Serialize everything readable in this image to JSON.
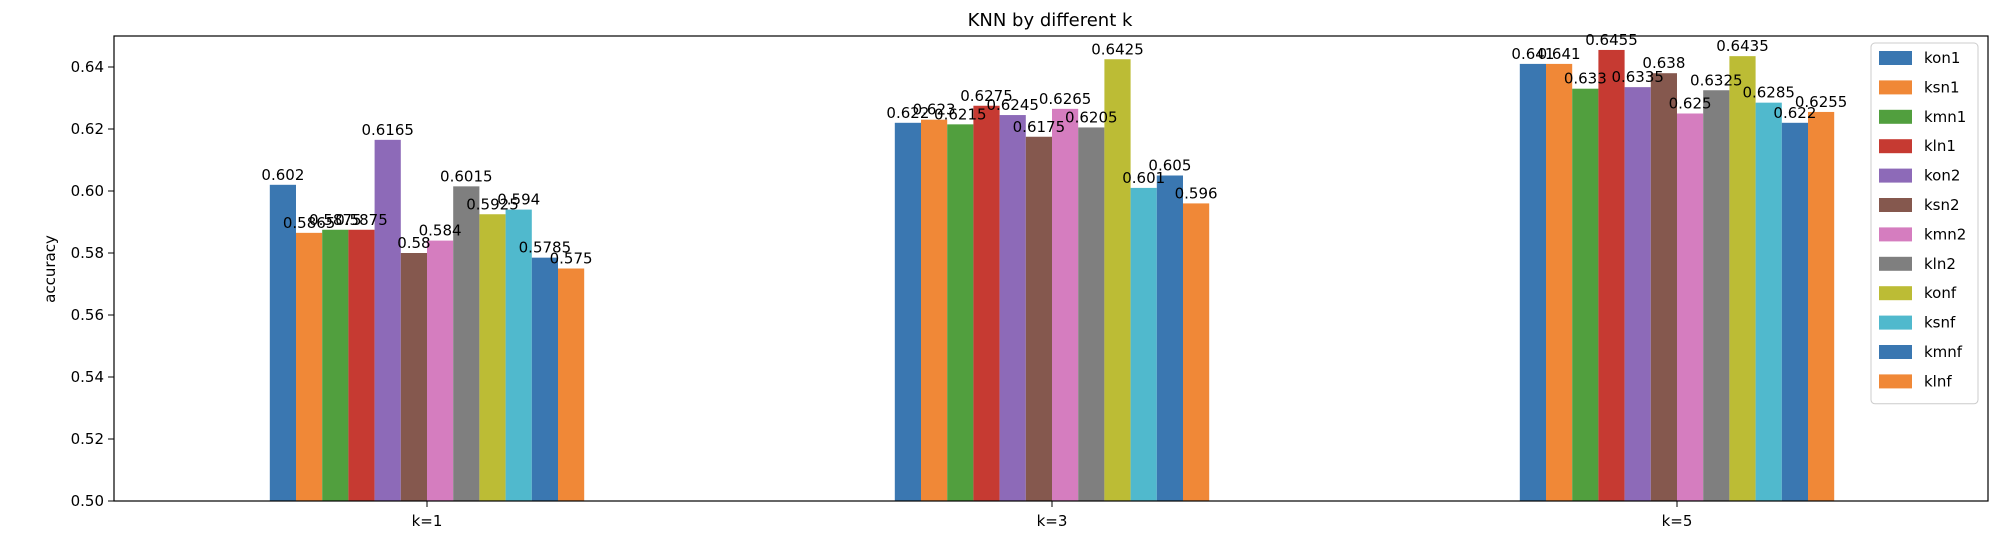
{
  "chart_data": {
    "type": "bar",
    "title": "KNN by different k",
    "xlabel": "",
    "ylabel": "accuracy",
    "ylim": [
      0.5,
      0.65
    ],
    "yticks": [
      "0.50",
      "0.52",
      "0.54",
      "0.56",
      "0.58",
      "0.60",
      "0.62",
      "0.64"
    ],
    "categories": [
      "k=1",
      "k=3",
      "k=5"
    ],
    "legend_position": "top-right",
    "grid": false,
    "series": [
      {
        "name": "kon1",
        "color": "#3a77b1",
        "values": [
          0.602,
          0.622,
          0.641
        ],
        "labels": [
          "0.602",
          "0.622",
          "0.641"
        ]
      },
      {
        "name": "ksn1",
        "color": "#f08837",
        "values": [
          0.5865,
          0.623,
          0.641
        ],
        "labels": [
          "0.5865",
          "0.623",
          "0.641"
        ]
      },
      {
        "name": "kmn1",
        "color": "#519f3e",
        "values": [
          0.5875,
          0.6215,
          0.633
        ],
        "labels": [
          "0.5875",
          "0.6215",
          "0.633"
        ]
      },
      {
        "name": "kln1",
        "color": "#c63a32",
        "values": [
          0.5875,
          0.6275,
          0.6455
        ],
        "labels": [
          "0.5875",
          "0.6275",
          "0.6455"
        ]
      },
      {
        "name": "kon2",
        "color": "#8d6ab8",
        "values": [
          0.6165,
          0.6245,
          0.6335
        ],
        "labels": [
          "0.6165",
          "0.6245",
          "0.6335"
        ]
      },
      {
        "name": "ksn2",
        "color": "#85584e",
        "values": [
          0.58,
          0.6175,
          0.638
        ],
        "labels": [
          "0.58",
          "0.6175",
          "0.638"
        ]
      },
      {
        "name": "kmn2",
        "color": "#d57dbf",
        "values": [
          0.584,
          0.6265,
          0.625
        ],
        "labels": [
          "0.584",
          "0.6265",
          "0.625"
        ]
      },
      {
        "name": "kln2",
        "color": "#7f7f7f",
        "values": [
          0.6015,
          0.6205,
          0.6325
        ],
        "labels": [
          "0.6015",
          "0.6205",
          "0.6325"
        ]
      },
      {
        "name": "konf",
        "color": "#bcbc35",
        "values": [
          0.5925,
          0.6425,
          0.6435
        ],
        "labels": [
          "0.5925",
          "0.6425",
          "0.6435"
        ]
      },
      {
        "name": "ksnf",
        "color": "#50b9cd",
        "values": [
          0.594,
          0.601,
          0.6285
        ],
        "labels": [
          "0.594",
          "0.601",
          "0.6285"
        ]
      },
      {
        "name": "kmnf",
        "color": "#3a77b1",
        "values": [
          0.5785,
          0.605,
          0.622
        ],
        "labels": [
          "0.5785",
          "0.605",
          "0.622"
        ]
      },
      {
        "name": "klnf",
        "color": "#f08837",
        "values": [
          0.575,
          0.596,
          0.6255
        ],
        "labels": [
          "0.575",
          "0.596",
          "0.6255"
        ]
      }
    ]
  }
}
